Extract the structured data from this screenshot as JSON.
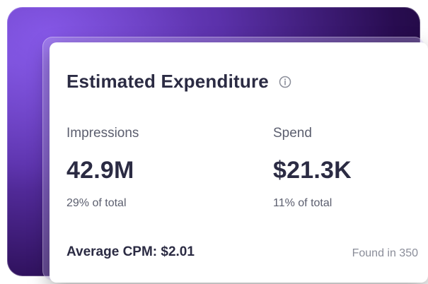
{
  "card": {
    "title": "Estimated Expenditure",
    "info_icon": "info-icon",
    "metrics": [
      {
        "label": "Impressions",
        "value": "42.9M",
        "sub": "29% of total"
      },
      {
        "label": "Spend",
        "value": "$21.3K",
        "sub": "11% of total"
      }
    ],
    "footer": {
      "average_cpm": "Average CPM: $2.01",
      "found_in": "Found in 350"
    }
  },
  "colors": {
    "purple_dark": "#140628",
    "purple_mid": "#5226A5",
    "text_primary": "#2B2B43",
    "text_secondary": "#5B5E6E",
    "text_muted": "#8A8D99"
  }
}
